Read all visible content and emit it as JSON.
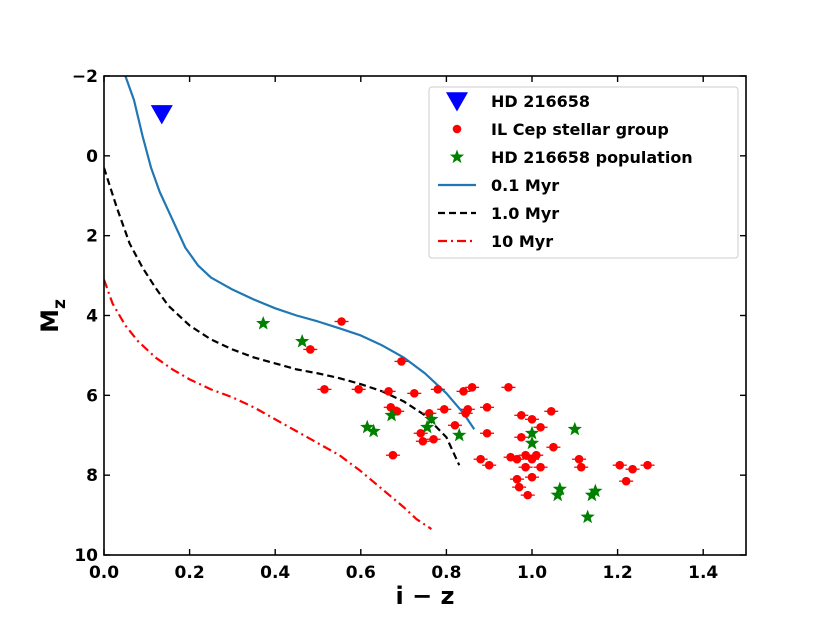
{
  "chart_data": {
    "type": "scatter",
    "title": "",
    "xlabel": "i − z",
    "ylabel_main": "M",
    "ylabel_sub": "z",
    "xlim": [
      0.0,
      1.5
    ],
    "ylim": [
      10,
      -2
    ],
    "y_inverted": true,
    "grid": false,
    "legend_position": "top-right",
    "xticks": [
      0.0,
      0.2,
      0.4,
      0.6,
      0.8,
      1.0,
      1.2,
      1.4
    ],
    "xtick_labels": [
      "0.0",
      "0.2",
      "0.4",
      "0.6",
      "0.8",
      "1.0",
      "1.2",
      "1.4"
    ],
    "yticks": [
      -2,
      0,
      2,
      4,
      6,
      8,
      10
    ],
    "ytick_labels": [
      "−2",
      "0",
      "2",
      "4",
      "6",
      "8",
      "10"
    ],
    "legend": [
      {
        "label": "HD 216658",
        "marker": "triangle-down",
        "color": "#0000ff"
      },
      {
        "label": "IL Cep stellar group",
        "marker": "circle",
        "color": "#ff0000"
      },
      {
        "label": "HD 216658 population",
        "marker": "star",
        "color": "#008000"
      },
      {
        "label": "0.1 Myr",
        "marker": "line-solid",
        "color": "#1f77b4"
      },
      {
        "label": "1.0 Myr",
        "marker": "line-dashed",
        "color": "#000000"
      },
      {
        "label": "10 Myr",
        "marker": "line-dashdot",
        "color": "#ff0000"
      }
    ],
    "series": [
      {
        "name": "HD 216658",
        "kind": "point",
        "color": "#0000ff",
        "points": [
          [
            0.135,
            -1.05
          ]
        ]
      },
      {
        "name": "IL Cep stellar group",
        "kind": "point",
        "color": "#ff0000",
        "points": [
          [
            0.555,
            4.15
          ],
          [
            0.482,
            4.85
          ],
          [
            0.695,
            5.15
          ],
          [
            0.515,
            5.85
          ],
          [
            0.595,
            5.85
          ],
          [
            0.665,
            5.9
          ],
          [
            0.725,
            5.95
          ],
          [
            0.78,
            5.85
          ],
          [
            0.84,
            5.9
          ],
          [
            0.86,
            5.8
          ],
          [
            0.945,
            5.8
          ],
          [
            0.67,
            6.3
          ],
          [
            0.685,
            6.4
          ],
          [
            0.76,
            6.45
          ],
          [
            0.795,
            6.35
          ],
          [
            0.845,
            6.45
          ],
          [
            0.85,
            6.35
          ],
          [
            0.895,
            6.3
          ],
          [
            0.975,
            6.5
          ],
          [
            1.0,
            6.6
          ],
          [
            1.045,
            6.4
          ],
          [
            0.74,
            6.95
          ],
          [
            0.745,
            7.15
          ],
          [
            0.77,
            7.1
          ],
          [
            0.82,
            6.75
          ],
          [
            0.895,
            6.95
          ],
          [
            0.975,
            7.05
          ],
          [
            1.02,
            6.8
          ],
          [
            1.05,
            7.3
          ],
          [
            0.675,
            7.5
          ],
          [
            0.88,
            7.6
          ],
          [
            0.9,
            7.75
          ],
          [
            0.95,
            7.55
          ],
          [
            0.965,
            7.6
          ],
          [
            0.985,
            7.5
          ],
          [
            1.0,
            7.6
          ],
          [
            1.01,
            7.5
          ],
          [
            0.985,
            7.8
          ],
          [
            1.02,
            7.8
          ],
          [
            1.11,
            7.6
          ],
          [
            1.115,
            7.8
          ],
          [
            1.205,
            7.75
          ],
          [
            1.235,
            7.85
          ],
          [
            1.27,
            7.75
          ],
          [
            0.965,
            8.1
          ],
          [
            0.97,
            8.3
          ],
          [
            1.0,
            8.05
          ],
          [
            1.22,
            8.15
          ],
          [
            0.99,
            8.5
          ]
        ]
      },
      {
        "name": "HD 216658 population",
        "kind": "point",
        "color": "#008000",
        "points": [
          [
            0.372,
            4.2
          ],
          [
            0.463,
            4.65
          ],
          [
            0.672,
            6.5
          ],
          [
            0.765,
            6.6
          ],
          [
            0.615,
            6.8
          ],
          [
            0.63,
            6.9
          ],
          [
            0.755,
            6.8
          ],
          [
            0.83,
            7.0
          ],
          [
            1.0,
            6.95
          ],
          [
            1.1,
            6.85
          ],
          [
            1.0,
            7.2
          ],
          [
            1.065,
            8.35
          ],
          [
            1.06,
            8.5
          ],
          [
            1.14,
            8.5
          ],
          [
            1.148,
            8.4
          ],
          [
            1.13,
            9.05
          ]
        ]
      },
      {
        "name": "0.1 Myr",
        "kind": "line",
        "style": "solid",
        "color": "#1f77b4",
        "points": [
          [
            0.05,
            -2.0
          ],
          [
            0.07,
            -1.4
          ],
          [
            0.09,
            -0.5
          ],
          [
            0.11,
            0.3
          ],
          [
            0.13,
            0.9
          ],
          [
            0.16,
            1.6
          ],
          [
            0.19,
            2.3
          ],
          [
            0.22,
            2.75
          ],
          [
            0.25,
            3.05
          ],
          [
            0.3,
            3.35
          ],
          [
            0.35,
            3.6
          ],
          [
            0.4,
            3.82
          ],
          [
            0.45,
            4.0
          ],
          [
            0.5,
            4.15
          ],
          [
            0.55,
            4.32
          ],
          [
            0.6,
            4.5
          ],
          [
            0.65,
            4.75
          ],
          [
            0.7,
            5.05
          ],
          [
            0.75,
            5.45
          ],
          [
            0.8,
            5.95
          ],
          [
            0.84,
            6.45
          ],
          [
            0.865,
            6.85
          ]
        ]
      },
      {
        "name": "1.0 Myr",
        "kind": "line",
        "style": "dashed",
        "color": "#000000",
        "points": [
          [
            0.0,
            0.3
          ],
          [
            0.03,
            1.3
          ],
          [
            0.06,
            2.2
          ],
          [
            0.09,
            2.8
          ],
          [
            0.12,
            3.3
          ],
          [
            0.15,
            3.75
          ],
          [
            0.2,
            4.25
          ],
          [
            0.25,
            4.6
          ],
          [
            0.3,
            4.85
          ],
          [
            0.35,
            5.05
          ],
          [
            0.4,
            5.2
          ],
          [
            0.45,
            5.35
          ],
          [
            0.5,
            5.45
          ],
          [
            0.55,
            5.57
          ],
          [
            0.6,
            5.72
          ],
          [
            0.65,
            5.9
          ],
          [
            0.7,
            6.15
          ],
          [
            0.75,
            6.5
          ],
          [
            0.8,
            7.05
          ],
          [
            0.83,
            7.75
          ]
        ]
      },
      {
        "name": "10 Myr",
        "kind": "line",
        "style": "dashdot",
        "color": "#ff0000",
        "points": [
          [
            0.0,
            3.1
          ],
          [
            0.02,
            3.7
          ],
          [
            0.05,
            4.25
          ],
          [
            0.08,
            4.65
          ],
          [
            0.12,
            5.05
          ],
          [
            0.16,
            5.35
          ],
          [
            0.2,
            5.6
          ],
          [
            0.25,
            5.85
          ],
          [
            0.3,
            6.05
          ],
          [
            0.35,
            6.3
          ],
          [
            0.4,
            6.6
          ],
          [
            0.45,
            6.9
          ],
          [
            0.5,
            7.2
          ],
          [
            0.55,
            7.5
          ],
          [
            0.6,
            7.9
          ],
          [
            0.65,
            8.35
          ],
          [
            0.7,
            8.8
          ],
          [
            0.73,
            9.1
          ],
          [
            0.765,
            9.35
          ]
        ]
      }
    ]
  }
}
